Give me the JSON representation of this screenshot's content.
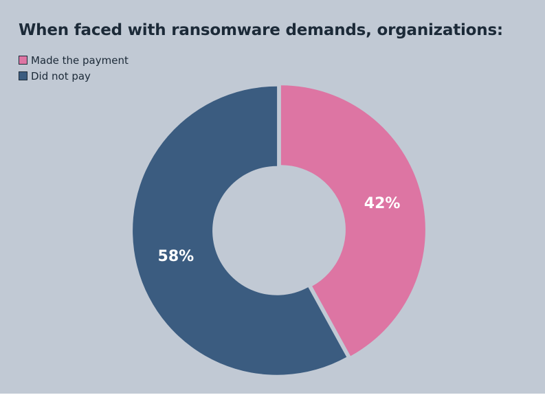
{
  "chart_data": {
    "type": "pie",
    "variant": "donut",
    "title": "When faced with ransomware demands, organizations:",
    "legend_position": "top-left",
    "categories": [
      "Made the payment",
      "Did not pay"
    ],
    "values": [
      42,
      58
    ],
    "labels": [
      "42%",
      "58%"
    ],
    "colors": [
      "#dd75a3",
      "#3b5c80"
    ]
  },
  "colors": {
    "background": "#c1c9d4",
    "text": "#1c2a38"
  }
}
